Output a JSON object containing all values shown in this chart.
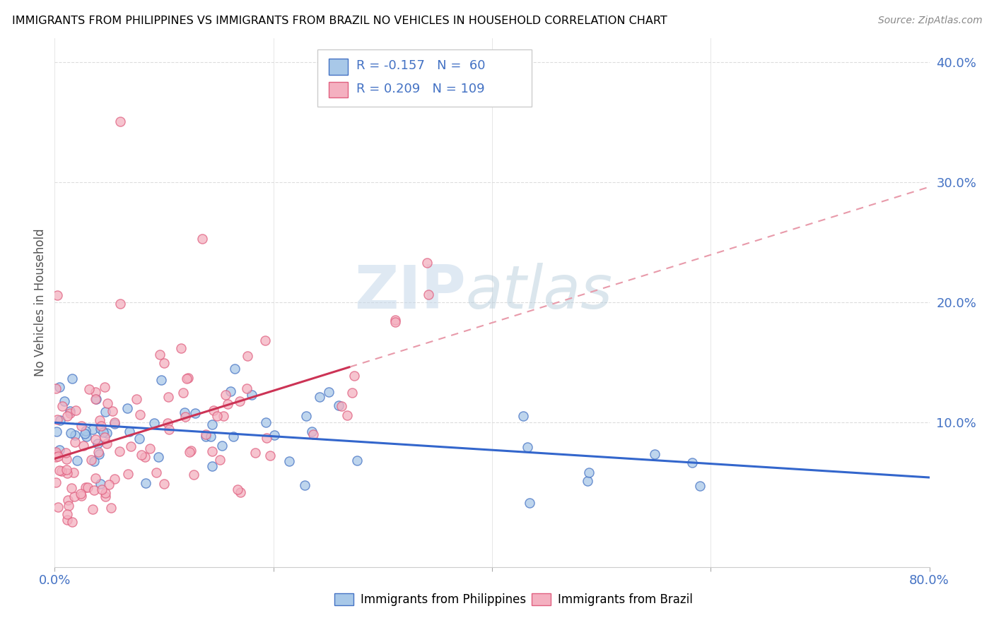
{
  "title": "IMMIGRANTS FROM PHILIPPINES VS IMMIGRANTS FROM BRAZIL NO VEHICLES IN HOUSEHOLD CORRELATION CHART",
  "source": "Source: ZipAtlas.com",
  "ylabel": "No Vehicles in Household",
  "xlim": [
    0.0,
    0.8
  ],
  "ylim": [
    -0.02,
    0.42
  ],
  "ytick_values": [
    0.0,
    0.1,
    0.2,
    0.3,
    0.4
  ],
  "ytick_labels": [
    "",
    "10.0%",
    "20.0%",
    "30.0%",
    "40.0%"
  ],
  "xtick_values": [
    0.0,
    0.8
  ],
  "xtick_labels": [
    "0.0%",
    "80.0%"
  ],
  "color_philippines": "#a8c8e8",
  "edgecolor_philippines": "#4472c4",
  "color_brazil": "#f4b0c0",
  "edgecolor_brazil": "#e06080",
  "trendline_philippines_color": "#3366cc",
  "trendline_brazil_solid_color": "#cc3355",
  "trendline_brazil_dash_color": "#e89aaa",
  "watermark_zip": "ZIP",
  "watermark_atlas": "atlas",
  "legend_r1": "R = -0.157",
  "legend_n1": "N =  60",
  "legend_r2": "R = 0.209",
  "legend_n2": "N = 109",
  "legend_color": "#4472c4",
  "grid_color": "#dddddd",
  "source_color": "#888888",
  "ylabel_color": "#555555"
}
